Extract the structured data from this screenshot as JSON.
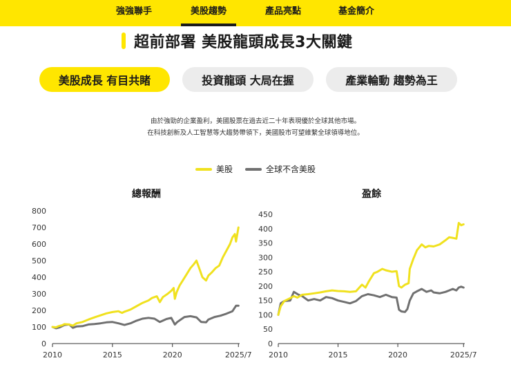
{
  "nav": {
    "items": [
      {
        "label": "強強聯手",
        "active": false
      },
      {
        "label": "美股趨勢",
        "active": true
      },
      {
        "label": "產品亮點",
        "active": false
      },
      {
        "label": "基金簡介",
        "active": false
      }
    ]
  },
  "section": {
    "title": "超前部署 美股龍頭成長3大關鍵"
  },
  "pills": [
    {
      "label": "美股成長 有目共睹",
      "active": true
    },
    {
      "label": "投資龍頭 大局在握",
      "active": false
    },
    {
      "label": "產業輪動 趨勢為王",
      "active": false
    }
  ],
  "description": {
    "line1": "由於強勁的企業盈利，美國股票在過去近二十年表現優於全球其他市場。",
    "line2": "在科技創新及人工智慧等大趨勢帶領下，美國股市可望維繫全球領導地位。"
  },
  "legend": [
    {
      "label": "美股",
      "color": "#f0e11e"
    },
    {
      "label": "全球不含美股",
      "color": "#707070"
    }
  ],
  "colors": {
    "accent": "#ffe600",
    "us_line": "#f0e11e",
    "global_line": "#707070"
  },
  "chart_data": [
    {
      "type": "line",
      "title": "總報酬",
      "xlabel": "",
      "ylabel": "",
      "xlim": [
        2010,
        2025.6
      ],
      "ylim": [
        0,
        800
      ],
      "yticks": [
        0,
        100,
        200,
        300,
        400,
        500,
        600,
        700,
        800
      ],
      "xticks": [
        {
          "value": 2010,
          "label": "2010"
        },
        {
          "value": 2015,
          "label": "2015"
        },
        {
          "value": 2020,
          "label": "2020"
        },
        {
          "value": 2025.5,
          "label": "2025/7"
        }
      ],
      "series": [
        {
          "name": "美股",
          "x": [
            2010,
            2010.3,
            2010.5,
            2010.8,
            2011,
            2011.4,
            2011.7,
            2012,
            2012.5,
            2013,
            2013.5,
            2014,
            2014.5,
            2015,
            2015.5,
            2015.8,
            2016,
            2016.5,
            2017,
            2017.5,
            2018,
            2018.3,
            2018.7,
            2018.95,
            2019.2,
            2019.6,
            2019.9,
            2020.1,
            2020.2,
            2020.35,
            2020.6,
            2020.9,
            2021.2,
            2021.5,
            2021.8,
            2022,
            2022.3,
            2022.5,
            2022.8,
            2023,
            2023.3,
            2023.6,
            2023.9,
            2024.2,
            2024.5,
            2024.8,
            2025,
            2025.2,
            2025.3,
            2025.5
          ],
          "values": [
            100,
            98,
            105,
            110,
            117,
            115,
            108,
            122,
            130,
            145,
            158,
            170,
            182,
            190,
            195,
            185,
            192,
            205,
            225,
            245,
            260,
            275,
            285,
            250,
            280,
            300,
            318,
            335,
            270,
            310,
            350,
            385,
            420,
            455,
            480,
            500,
            440,
            400,
            380,
            410,
            430,
            455,
            470,
            520,
            560,
            600,
            640,
            660,
            615,
            700
          ]
        },
        {
          "name": "全球不含美股",
          "x": [
            2010,
            2010.3,
            2010.6,
            2011,
            2011.4,
            2011.7,
            2012,
            2012.5,
            2013,
            2013.5,
            2014,
            2014.5,
            2015,
            2015.5,
            2016,
            2016.5,
            2017,
            2017.5,
            2018,
            2018.5,
            2018.95,
            2019.5,
            2019.9,
            2020.2,
            2020.4,
            2020.8,
            2021,
            2021.5,
            2022,
            2022.4,
            2022.8,
            2023,
            2023.5,
            2024,
            2024.5,
            2025,
            2025.3,
            2025.5
          ],
          "values": [
            100,
            92,
            98,
            112,
            115,
            95,
            103,
            105,
            115,
            118,
            122,
            128,
            130,
            122,
            112,
            122,
            138,
            150,
            155,
            150,
            130,
            148,
            155,
            115,
            130,
            150,
            160,
            165,
            158,
            130,
            128,
            145,
            160,
            168,
            180,
            195,
            228,
            228
          ]
        }
      ]
    },
    {
      "type": "line",
      "title": "盈餘",
      "xlabel": "",
      "ylabel": "",
      "xlim": [
        2010,
        2025.6
      ],
      "ylim": [
        0,
        450
      ],
      "yticks": [
        0,
        50,
        100,
        150,
        200,
        250,
        300,
        350,
        400,
        450
      ],
      "xticks": [
        {
          "value": 2010,
          "label": "2010"
        },
        {
          "value": 2015,
          "label": "2015"
        },
        {
          "value": 2020,
          "label": "2020"
        },
        {
          "value": 2025.5,
          "label": "2025/7"
        }
      ],
      "series": [
        {
          "name": "美股",
          "x": [
            2010,
            2010.2,
            2010.5,
            2011,
            2011.3,
            2011.6,
            2012,
            2012.5,
            2013,
            2013.5,
            2014,
            2014.5,
            2015,
            2015.5,
            2016,
            2016.5,
            2017,
            2017.3,
            2017.6,
            2018,
            2018.3,
            2018.7,
            2019,
            2019.5,
            2019.9,
            2020.1,
            2020.3,
            2020.6,
            2020.9,
            2021,
            2021.3,
            2021.6,
            2022,
            2022.3,
            2022.6,
            2023,
            2023.5,
            2024,
            2024.3,
            2024.6,
            2024.9,
            2025.1,
            2025.3,
            2025.5
          ],
          "values": [
            100,
            130,
            148,
            158,
            165,
            160,
            170,
            172,
            175,
            178,
            182,
            185,
            183,
            182,
            180,
            182,
            205,
            195,
            218,
            245,
            250,
            260,
            255,
            250,
            252,
            200,
            195,
            205,
            210,
            260,
            295,
            325,
            345,
            335,
            340,
            338,
            345,
            360,
            370,
            368,
            365,
            420,
            412,
            415
          ]
        },
        {
          "name": "全球不含美股",
          "x": [
            2010,
            2010.2,
            2010.5,
            2011,
            2011.3,
            2011.7,
            2012,
            2012.5,
            2013,
            2013.5,
            2014,
            2014.5,
            2015,
            2015.5,
            2016,
            2016.5,
            2017,
            2017.5,
            2018,
            2018.5,
            2019,
            2019.5,
            2019.9,
            2020.1,
            2020.3,
            2020.6,
            2020.8,
            2021,
            2021.3,
            2021.6,
            2022,
            2022.4,
            2022.8,
            2023,
            2023.5,
            2024,
            2024.3,
            2024.6,
            2024.9,
            2025.1,
            2025.3,
            2025.5
          ],
          "values": [
            100,
            140,
            148,
            150,
            180,
            170,
            165,
            150,
            155,
            150,
            162,
            158,
            150,
            145,
            140,
            148,
            165,
            172,
            168,
            162,
            170,
            162,
            160,
            118,
            112,
            110,
            120,
            150,
            175,
            182,
            190,
            180,
            185,
            178,
            175,
            180,
            185,
            190,
            185,
            195,
            198,
            195
          ]
        }
      ]
    }
  ]
}
